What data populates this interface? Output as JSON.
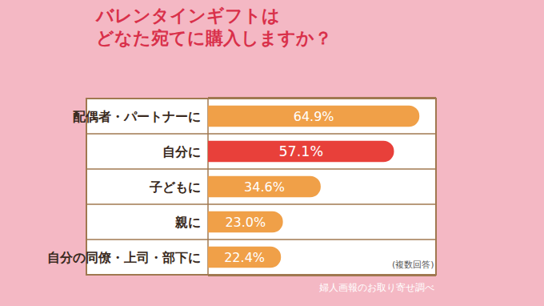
{
  "chart_data": {
    "type": "bar",
    "orientation": "horizontal",
    "title": "バレンタインギフトは\nどなた宛てに購入しますか？",
    "categories": [
      "配偶者・パートナーに",
      "自分に",
      "子どもに",
      "親に",
      "自分の同僚・上司・部下に"
    ],
    "values": [
      64.9,
      57.1,
      34.6,
      23.0,
      22.4
    ],
    "value_labels": [
      "64.9%",
      "57.1%",
      "34.6%",
      "23.0%",
      "22.4%"
    ],
    "colors": [
      "#f0a048",
      "#e8403a",
      "#f0a048",
      "#f0a048",
      "#f0a048"
    ],
    "xlim": [
      0,
      70
    ],
    "grid": false,
    "data_labels": true,
    "tick_labels": "y",
    "note": "(複数回答)",
    "source": "婦人画報のお取り寄せ調べ"
  }
}
